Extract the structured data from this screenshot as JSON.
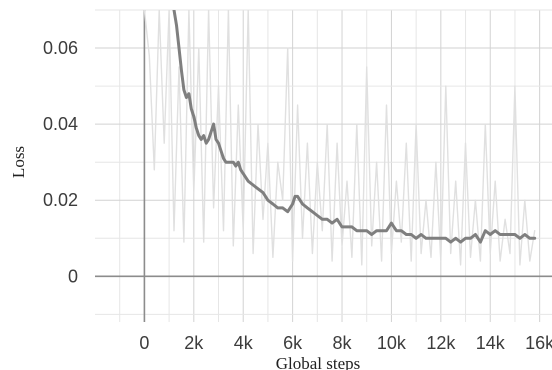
{
  "chart_data": {
    "type": "line",
    "title": "",
    "xlabel": "Global steps",
    "ylabel": "Loss",
    "xlim": [
      -2000,
      16500
    ],
    "ylim": [
      -0.012,
      0.07
    ],
    "x_ticks": [
      0,
      2000,
      4000,
      6000,
      8000,
      10000,
      12000,
      14000,
      16000
    ],
    "x_tick_labels": [
      "0",
      "2k",
      "4k",
      "6k",
      "8k",
      "10k",
      "12k",
      "14k",
      "16k"
    ],
    "y_ticks": [
      0,
      0.02,
      0.04,
      0.06
    ],
    "y_tick_labels": [
      "0",
      "0.02",
      "0.04",
      "0.06"
    ],
    "grid": true,
    "series": [
      {
        "role": "raw",
        "color": "#e0e0e0",
        "x": [
          0,
          200,
          400,
          600,
          800,
          1000,
          1200,
          1400,
          1600,
          1800,
          2000,
          2200,
          2400,
          2600,
          2800,
          3000,
          3200,
          3400,
          3600,
          3800,
          4000,
          4200,
          4400,
          4600,
          4800,
          5000,
          5200,
          5400,
          5600,
          5800,
          6000,
          6200,
          6400,
          6600,
          6800,
          7000,
          7200,
          7400,
          7600,
          7800,
          8000,
          8200,
          8400,
          8600,
          8800,
          9000,
          9200,
          9400,
          9600,
          9800,
          10000,
          10200,
          10400,
          10600,
          10800,
          11000,
          11200,
          11400,
          11600,
          11800,
          12000,
          12200,
          12400,
          12600,
          12800,
          13000,
          13200,
          13400,
          13600,
          13800,
          14000,
          14200,
          14400,
          14600,
          14800,
          15000,
          15200,
          15400,
          15600,
          15800
        ],
        "y": [
          0.07,
          0.058,
          0.028,
          0.07,
          0.035,
          0.07,
          0.012,
          0.055,
          0.009,
          0.07,
          0.022,
          0.06,
          0.009,
          0.07,
          0.018,
          0.05,
          0.012,
          0.07,
          0.008,
          0.045,
          0.012,
          0.07,
          0.006,
          0.04,
          0.015,
          0.035,
          0.005,
          0.03,
          0.02,
          0.06,
          0.004,
          0.045,
          0.01,
          0.035,
          0.006,
          0.03,
          0.012,
          0.04,
          0.004,
          0.035,
          0.008,
          0.025,
          0.005,
          0.04,
          0.003,
          0.055,
          0.008,
          0.03,
          0.004,
          0.045,
          0.006,
          0.025,
          0.009,
          0.035,
          0.004,
          0.04,
          0.006,
          0.02,
          0.005,
          0.03,
          0.004,
          0.05,
          0.006,
          0.025,
          0.003,
          0.035,
          0.005,
          0.02,
          0.004,
          0.04,
          0.006,
          0.025,
          0.004,
          0.015,
          0.006,
          0.05,
          0.003,
          0.02,
          0.004,
          0.012
        ]
      },
      {
        "role": "smoothed",
        "color": "#7f7f7f",
        "x": [
          1200,
          1300,
          1400,
          1500,
          1600,
          1700,
          1800,
          1900,
          2000,
          2100,
          2200,
          2300,
          2400,
          2500,
          2600,
          2700,
          2800,
          2900,
          3000,
          3100,
          3200,
          3300,
          3400,
          3500,
          3600,
          3700,
          3800,
          3900,
          4000,
          4200,
          4400,
          4600,
          4800,
          5000,
          5200,
          5400,
          5600,
          5800,
          6000,
          6100,
          6200,
          6300,
          6400,
          6600,
          6800,
          7000,
          7200,
          7400,
          7600,
          7800,
          8000,
          8200,
          8400,
          8600,
          8800,
          9000,
          9200,
          9400,
          9600,
          9800,
          10000,
          10100,
          10200,
          10400,
          10600,
          10800,
          11000,
          11200,
          11400,
          11600,
          11800,
          12000,
          12200,
          12400,
          12600,
          12800,
          13000,
          13200,
          13400,
          13600,
          13800,
          14000,
          14200,
          14400,
          14600,
          14800,
          15000,
          15200,
          15400,
          15600,
          15800
        ],
        "y": [
          0.07,
          0.066,
          0.06,
          0.054,
          0.049,
          0.047,
          0.048,
          0.044,
          0.042,
          0.039,
          0.037,
          0.036,
          0.037,
          0.035,
          0.036,
          0.038,
          0.04,
          0.036,
          0.035,
          0.033,
          0.031,
          0.03,
          0.03,
          0.03,
          0.03,
          0.029,
          0.03,
          0.028,
          0.027,
          0.025,
          0.024,
          0.023,
          0.022,
          0.02,
          0.019,
          0.018,
          0.018,
          0.017,
          0.019,
          0.021,
          0.021,
          0.02,
          0.019,
          0.018,
          0.017,
          0.016,
          0.015,
          0.015,
          0.014,
          0.015,
          0.013,
          0.013,
          0.013,
          0.012,
          0.012,
          0.012,
          0.011,
          0.012,
          0.012,
          0.012,
          0.014,
          0.013,
          0.012,
          0.012,
          0.011,
          0.011,
          0.01,
          0.011,
          0.01,
          0.01,
          0.01,
          0.01,
          0.01,
          0.009,
          0.01,
          0.009,
          0.01,
          0.01,
          0.011,
          0.009,
          0.012,
          0.011,
          0.012,
          0.011,
          0.011,
          0.011,
          0.011,
          0.01,
          0.011,
          0.01,
          0.01
        ]
      }
    ]
  }
}
